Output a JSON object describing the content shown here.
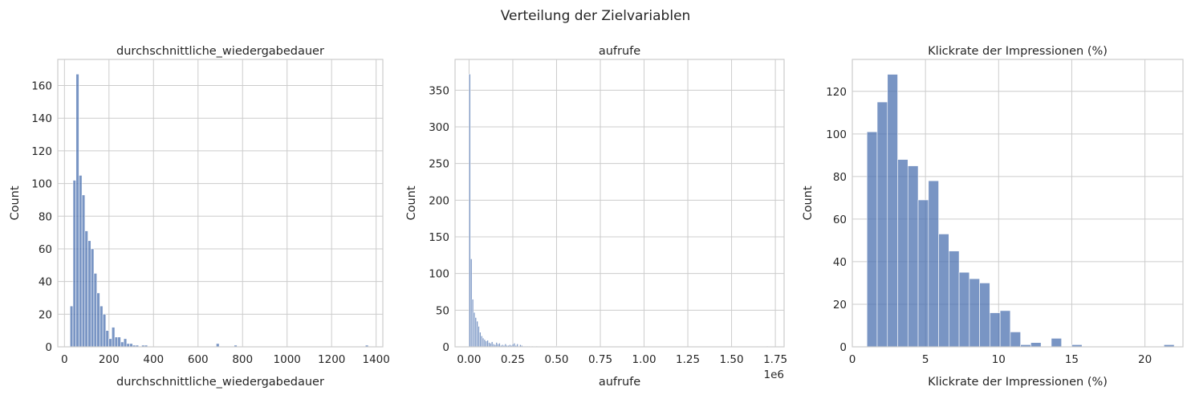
{
  "figure": {
    "suptitle": "Verteilung der Zielvariablen"
  },
  "colors": {
    "bar": "#4c72b0",
    "grid": "#cccccc",
    "text": "#262626"
  },
  "chart_data": [
    {
      "type": "bar",
      "title": "durchschnittliche_wiedergabedauer",
      "xlabel": "durchschnittliche_wiedergabedauer",
      "ylabel": "Count",
      "xlim": [
        -30,
        1430
      ],
      "ylim": [
        0,
        176
      ],
      "xticks": [
        0,
        200,
        400,
        600,
        800,
        1000,
        1200,
        1400
      ],
      "yticks": [
        0,
        20,
        40,
        60,
        80,
        100,
        120,
        140,
        160
      ],
      "bin_start": 25,
      "bin_width": 13.4,
      "values": [
        25,
        102,
        167,
        105,
        93,
        71,
        65,
        60,
        45,
        33,
        25,
        20,
        10,
        5,
        12,
        6,
        6,
        3,
        5,
        2,
        2,
        1,
        1,
        0,
        1,
        1,
        0,
        0,
        0,
        0,
        0,
        0,
        0,
        0,
        0,
        0,
        0,
        0,
        0,
        0,
        0,
        0,
        0,
        0,
        0,
        0,
        0,
        0,
        0,
        2,
        0,
        0,
        0,
        0,
        0,
        1,
        0,
        0,
        0,
        0,
        0,
        0,
        0,
        0,
        0,
        0,
        0,
        0,
        0,
        0,
        0,
        0,
        0,
        0,
        0,
        0,
        0,
        0,
        0,
        0,
        0,
        0,
        0,
        0,
        0,
        0,
        0,
        0,
        0,
        0,
        0,
        0,
        0,
        0,
        0,
        0,
        0,
        0,
        0,
        1
      ]
    },
    {
      "type": "bar",
      "title": "aufrufe",
      "xlabel": "aufrufe",
      "ylabel": "Count",
      "offset_label": "1e6",
      "xlim": [
        -0.08,
        1.8
      ],
      "ylim": [
        0,
        392
      ],
      "xticks": [
        0.0,
        0.25,
        0.5,
        0.75,
        1.0,
        1.25,
        1.5,
        1.75
      ],
      "xtick_labels": [
        "0.00",
        "0.25",
        "0.50",
        "0.75",
        "1.00",
        "1.25",
        "1.50",
        "1.75"
      ],
      "yticks": [
        0,
        50,
        100,
        150,
        200,
        250,
        300,
        350
      ],
      "bin_start": 0.0,
      "bin_width": 0.0085,
      "values": [
        372,
        120,
        65,
        47,
        40,
        35,
        28,
        20,
        15,
        12,
        10,
        8,
        9,
        6,
        5,
        7,
        4,
        3,
        6,
        4,
        5,
        2,
        3,
        2,
        4,
        2,
        2,
        3,
        2,
        4,
        5,
        2,
        4,
        1,
        3,
        2,
        1,
        1,
        1,
        1,
        1,
        0,
        1,
        0,
        0,
        1,
        0,
        0,
        0,
        0,
        0,
        0,
        0,
        0,
        0,
        0,
        0,
        0,
        1,
        0,
        0,
        0,
        0,
        0,
        0,
        0,
        0,
        0,
        0,
        0,
        0,
        0,
        0,
        0,
        0,
        0,
        0,
        0,
        0,
        0,
        0,
        0,
        0,
        0,
        0,
        0,
        0,
        0,
        0,
        0,
        0,
        0,
        0,
        0,
        0,
        0,
        0,
        0,
        0,
        0,
        0,
        0,
        0,
        0,
        0,
        0,
        0,
        0,
        0,
        0,
        0,
        0,
        0,
        0,
        0,
        0,
        0,
        0,
        0,
        0,
        0,
        0,
        0,
        0,
        0,
        0,
        0,
        0,
        0,
        0,
        0,
        0,
        0,
        0,
        0,
        0,
        0,
        0,
        0,
        0,
        0,
        0,
        0,
        0,
        0,
        0,
        0,
        0,
        0,
        0,
        0,
        0,
        0,
        0,
        0,
        0,
        0,
        0,
        0,
        0,
        0,
        0,
        0,
        0,
        0,
        0,
        0,
        0,
        0,
        0,
        0,
        0,
        0,
        0,
        0,
        0,
        0,
        0,
        0,
        0,
        0,
        0,
        0,
        0,
        0,
        0,
        0,
        0,
        0,
        0,
        0,
        0,
        0,
        0,
        0,
        0,
        0,
        0,
        0,
        0,
        1
      ]
    },
    {
      "type": "bar",
      "title": "Klickrate der Impressionen (%)",
      "xlabel": "Klickrate der Impressionen (%)",
      "ylabel": "Count",
      "xlim": [
        0,
        22.6
      ],
      "ylim": [
        0,
        135
      ],
      "xticks": [
        0,
        5,
        10,
        15,
        20
      ],
      "yticks": [
        0,
        20,
        40,
        60,
        80,
        100,
        120
      ],
      "bin_start": 1.0,
      "bin_width": 0.7,
      "values": [
        101,
        115,
        128,
        88,
        85,
        69,
        78,
        53,
        45,
        35,
        32,
        30,
        16,
        17,
        7,
        1,
        2,
        0,
        4,
        0,
        1,
        0,
        0,
        0,
        0,
        0,
        0,
        0,
        0,
        1
      ]
    }
  ]
}
